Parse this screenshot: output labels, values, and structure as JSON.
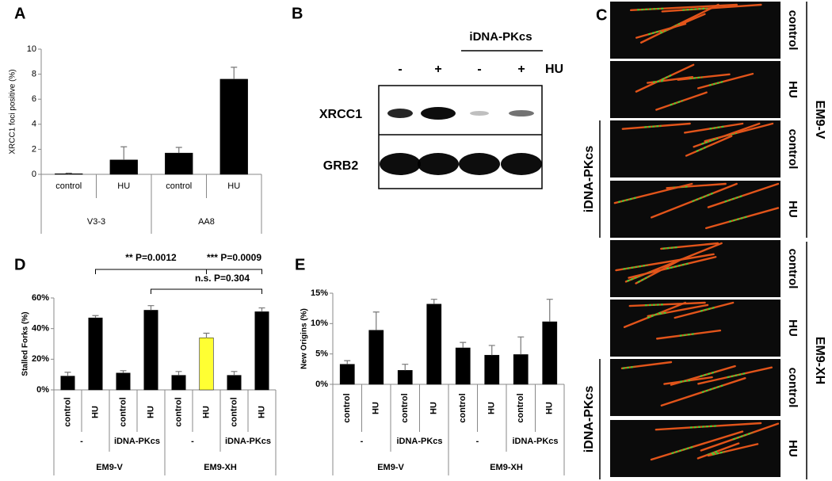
{
  "chart_data": [
    {
      "type": "bar",
      "panel": "A",
      "ylabel": "XRCC1 foci positive (%)",
      "categories": [
        "control",
        "HU",
        "control",
        "HU"
      ],
      "groups": [
        "V3-3",
        "AA8"
      ],
      "values": [
        0.05,
        1.15,
        1.7,
        7.6
      ],
      "errors": [
        0.05,
        1.05,
        0.45,
        0.95
      ],
      "colors": [
        "#000000",
        "#000000",
        "#000000",
        "#000000"
      ],
      "ylim": [
        0,
        10
      ],
      "yticks": [
        0,
        2,
        4,
        6,
        8,
        10
      ]
    },
    {
      "type": "bar",
      "panel": "D",
      "ylabel": "Stalled Forks (%)",
      "categories": [
        "control",
        "HU",
        "control",
        "HU",
        "control",
        "HU",
        "control",
        "HU"
      ],
      "subgroups": [
        "-",
        "iDNA-PKcs",
        "-",
        "iDNA-PKcs"
      ],
      "groups": [
        "EM9-V",
        "EM9-XH"
      ],
      "values": [
        9,
        47,
        11,
        52,
        9.5,
        34,
        9.5,
        51
      ],
      "errors": [
        2.5,
        1.5,
        1.5,
        3,
        2.5,
        3,
        2.5,
        2.5
      ],
      "colors": [
        "#000000",
        "#000000",
        "#000000",
        "#000000",
        "#000000",
        "#ffff33",
        "#000000",
        "#000000"
      ],
      "ylim": [
        0,
        60
      ],
      "yticks": [
        {
          "value": 0,
          "label": "0%"
        },
        {
          "value": 20,
          "label": "20%"
        },
        {
          "value": 40,
          "label": "40%"
        },
        {
          "value": 60,
          "label": "60%"
        }
      ],
      "annotations": [
        "** P=0.0012",
        "*** P=0.0009",
        "n.s. P=0.304"
      ]
    },
    {
      "type": "bar",
      "panel": "E",
      "ylabel": "New Origins (%)",
      "categories": [
        "control",
        "HU",
        "control",
        "HU",
        "control",
        "HU",
        "control",
        "HU"
      ],
      "subgroups": [
        "-",
        "iDNA-PKcs",
        "-",
        "iDNA-PKcs"
      ],
      "groups": [
        "EM9-V",
        "EM9-XH"
      ],
      "values": [
        3.3,
        8.9,
        2.3,
        13.2,
        6.0,
        4.8,
        4.9,
        10.3
      ],
      "errors": [
        0.6,
        3.0,
        1.0,
        0.8,
        0.9,
        1.6,
        2.9,
        3.7
      ],
      "colors": [
        "#000000",
        "#000000",
        "#000000",
        "#000000",
        "#000000",
        "#000000",
        "#000000",
        "#000000"
      ],
      "ylim": [
        0,
        15
      ],
      "yticks": [
        {
          "value": 0,
          "label": "0%"
        },
        {
          "value": 5,
          "label": "5%"
        },
        {
          "value": 10,
          "label": "10%"
        },
        {
          "value": 15,
          "label": "15%"
        }
      ]
    }
  ],
  "blot": {
    "panel": "B",
    "header": "iDNA-PKcs",
    "lanes": [
      "-",
      "+",
      "-",
      "+"
    ],
    "treatment": "HU",
    "bands": [
      "XRCC1",
      "GRB2"
    ]
  },
  "fibers": {
    "panel": "C",
    "rows": [
      "control",
      "HU",
      "control",
      "HU",
      "control",
      "HU",
      "control",
      "HU"
    ],
    "inhibitor": [
      "iDNA-PKcs",
      "iDNA-PKcs"
    ],
    "groups": [
      "EM9-V",
      "EM9-XH"
    ]
  }
}
